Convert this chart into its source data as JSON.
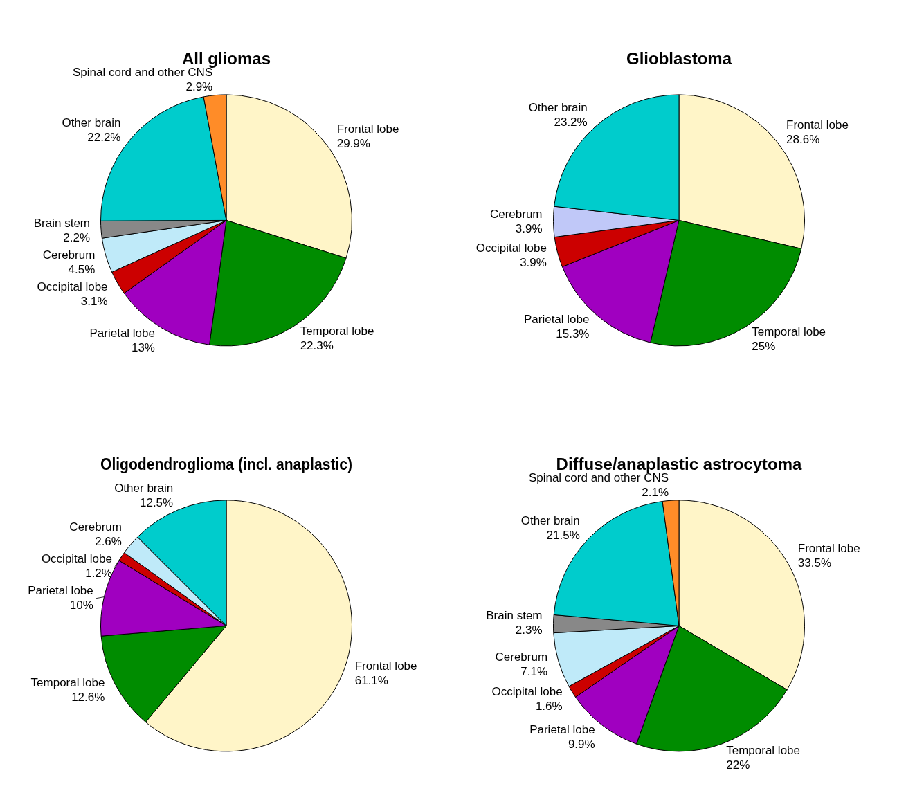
{
  "chart_data": [
    {
      "type": "pie",
      "title": "All gliomas",
      "categories": [
        "Frontal lobe",
        "Temporal lobe",
        "Parietal lobe",
        "Occipital lobe",
        "Cerebrum",
        "Brain stem",
        "Other brain",
        "Spinal cord and other CNS"
      ],
      "values": [
        29.9,
        22.3,
        13,
        3.1,
        4.5,
        2.2,
        22.2,
        2.9
      ],
      "value_labels": [
        "29.9%",
        "22.3%",
        "13%",
        "3.1%",
        "4.5%",
        "2.2%",
        "22.2%",
        "2.9%"
      ],
      "colors": [
        "#fff5c8",
        "#008c00",
        "#a000c0",
        "#cc0000",
        "#bfeaf9",
        "#888888",
        "#00cccc",
        "#ff8c28"
      ],
      "legend": false
    },
    {
      "type": "pie",
      "title": "Glioblastoma",
      "categories": [
        "Frontal lobe",
        "Temporal lobe",
        "Parietal lobe",
        "Occipital lobe",
        "Cerebrum",
        "Other brain"
      ],
      "values": [
        28.6,
        25,
        15.3,
        3.9,
        3.9,
        23.2
      ],
      "value_labels": [
        "28.6%",
        "25%",
        "15.3%",
        "3.9%",
        "3.9%",
        "23.2%"
      ],
      "colors": [
        "#fff5c8",
        "#008c00",
        "#a000c0",
        "#cc0000",
        "#c0c8f8",
        "#00cccc"
      ],
      "legend": false
    },
    {
      "type": "pie",
      "title": "Oligodendroglioma (incl. anaplastic)",
      "categories": [
        "Frontal lobe",
        "Temporal lobe",
        "Parietal lobe",
        "Occipital lobe",
        "Cerebrum",
        "Other brain"
      ],
      "values": [
        61.1,
        12.6,
        10,
        1.2,
        2.6,
        12.5
      ],
      "value_labels": [
        "61.1%",
        "12.6%",
        "10%",
        "1.2%",
        "2.6%",
        "12.5%"
      ],
      "colors": [
        "#fff5c8",
        "#008c00",
        "#a000c0",
        "#cc0000",
        "#bfeaf9",
        "#00cccc"
      ],
      "legend": false
    },
    {
      "type": "pie",
      "title": "Diffuse/anaplastic astrocytoma",
      "categories": [
        "Frontal lobe",
        "Temporal lobe",
        "Parietal lobe",
        "Occipital lobe",
        "Cerebrum",
        "Brain stem",
        "Other brain",
        "Spinal cord and other CNS"
      ],
      "values": [
        33.5,
        22,
        9.9,
        1.6,
        7.1,
        2.3,
        21.5,
        2.1
      ],
      "value_labels": [
        "33.5%",
        "22%",
        "9.9%",
        "1.6%",
        "7.1%",
        "2.3%",
        "21.5%",
        "2.1%"
      ],
      "colors": [
        "#fff5c8",
        "#008c00",
        "#a000c0",
        "#cc0000",
        "#bfeaf9",
        "#888888",
        "#00cccc",
        "#ff8c28"
      ],
      "legend": false
    }
  ]
}
